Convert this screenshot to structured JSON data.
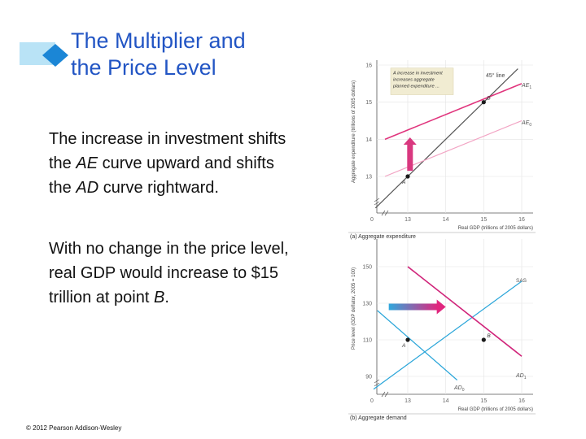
{
  "title": {
    "line1": "The Multiplier and",
    "line2": "the Price Level"
  },
  "body": {
    "p1": [
      {
        "text": "The increase in investment "
      },
      {
        "text": "shifts the "
      },
      {
        "text": "AE",
        "italic": true
      },
      {
        "text": " curve upward and shifts the "
      },
      {
        "text": "AD",
        "italic": true
      },
      {
        "text": " curve rightward."
      }
    ],
    "p2": [
      {
        "text": "With no change in the price level, real GDP would increase to $15 trillion at point "
      },
      {
        "text": "B",
        "italic": true
      },
      {
        "text": "."
      }
    ]
  },
  "copyright": "© 2012 Pearson Addison-Wesley",
  "colors": {
    "title": "#2255c4",
    "ae_new": "#e0357d",
    "ae_old": "#f2a3c3",
    "ad_new": "#d0247a",
    "ad_old": "#29a5d9",
    "sas": "#29a5d9",
    "line45": "#555555",
    "callout": "#f1ecd2",
    "arrow_up": "#d9387f"
  },
  "chart_data": [
    {
      "type": "line",
      "caption": "(a) Aggregate expenditure",
      "xlabel": "Real GDP (trillions of 2005 dollars)",
      "ylabel": "Aggregate expenditure (trillions of 2005 dollars)",
      "x_ticks": [
        "0",
        "13",
        "14",
        "15",
        "16"
      ],
      "y_ticks": [
        "13",
        "14",
        "15",
        "16"
      ],
      "xlim": [
        12,
        16
      ],
      "ylim": [
        12,
        16
      ],
      "series": [
        {
          "name": "45° line",
          "label": "45° line",
          "points": [
            [
              12.15,
              12.15
            ],
            [
              15.9,
              15.9
            ]
          ]
        },
        {
          "name": "AE1",
          "label": "AE",
          "sub": "1",
          "points": [
            [
              12.4,
              14.0
            ],
            [
              16.0,
              15.5
            ]
          ]
        },
        {
          "name": "AE0",
          "label": "AE",
          "sub": "0",
          "points": [
            [
              12.4,
              13.0
            ],
            [
              16.0,
              14.5
            ]
          ]
        }
      ],
      "points": [
        {
          "label": "A",
          "x": 13,
          "y": 13
        },
        {
          "label": "B",
          "x": 15,
          "y": 15
        }
      ],
      "annotation": {
        "lines": [
          "A    increase in investment",
          "increases aggregate",
          "planned expenditure ..."
        ],
        "x": [
          12.55,
          14.2
        ],
        "y": [
          15.2,
          15.92
        ]
      },
      "arrow": {
        "x": 13.06,
        "from": 13.15,
        "to": 14.05
      }
    },
    {
      "type": "line",
      "caption": "(b) Aggregate demand",
      "xlabel": "Real GDP (trillions of 2005 dollars)",
      "ylabel": "Price level (GDP deflator, 2005 = 100)",
      "x_ticks": [
        "0",
        "13",
        "14",
        "15",
        "16"
      ],
      "y_ticks": [
        "90",
        "110",
        "130",
        "150"
      ],
      "xlim": [
        12,
        16
      ],
      "ylim": [
        85,
        155
      ],
      "series": [
        {
          "name": "SAS",
          "label": "SAS",
          "points": [
            [
              12.1,
              83
            ],
            [
              16.0,
              142
            ]
          ]
        },
        {
          "name": "AD1",
          "label": "AD",
          "sub": "1",
          "points": [
            [
              13.0,
              150
            ],
            [
              16.0,
              101
            ]
          ]
        },
        {
          "name": "AD0",
          "label": "AD",
          "sub": "0",
          "points": [
            [
              12.2,
              126
            ],
            [
              14.3,
              88
            ]
          ]
        }
      ],
      "points": [
        {
          "label": "A",
          "x": 13,
          "y": 110
        },
        {
          "label": "B",
          "x": 15,
          "y": 110
        }
      ],
      "arrow": {
        "y": 128,
        "from": 12.5,
        "to": 14.0
      }
    }
  ]
}
